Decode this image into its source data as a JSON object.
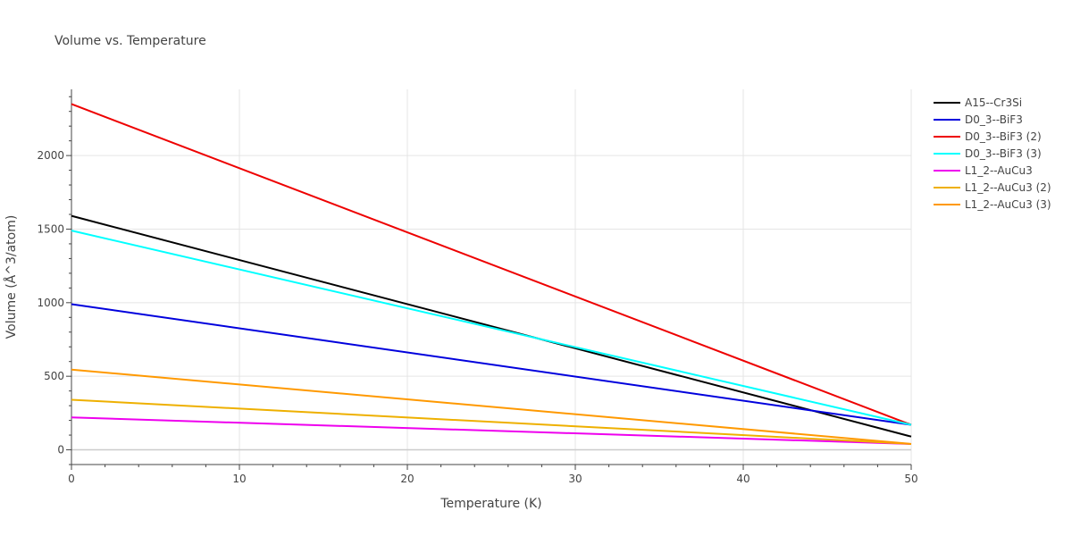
{
  "chart_data": {
    "type": "line",
    "title": "Volume vs. Temperature",
    "xlabel": "Temperature (K)",
    "ylabel": "Volume (Å^3/atom)",
    "xlim": [
      0,
      50
    ],
    "ylim": [
      -100,
      2450
    ],
    "x_ticks": [
      0,
      10,
      20,
      30,
      40,
      50
    ],
    "y_ticks": [
      0,
      500,
      1000,
      1500,
      2000
    ],
    "grid": true,
    "legend_position": "right",
    "series": [
      {
        "name": "A15--Cr3Si",
        "color": "#000000",
        "x": [
          0,
          50
        ],
        "y": [
          1590,
          90
        ]
      },
      {
        "name": "D0_3--BiF3",
        "color": "#0000dd",
        "x": [
          0,
          50
        ],
        "y": [
          990,
          170
        ]
      },
      {
        "name": "D0_3--BiF3 (2)",
        "color": "#ee0000",
        "x": [
          0,
          50
        ],
        "y": [
          2350,
          170
        ]
      },
      {
        "name": "D0_3--BiF3 (3)",
        "color": "#00ffff",
        "x": [
          0,
          50
        ],
        "y": [
          1490,
          170
        ]
      },
      {
        "name": "L1_2--AuCu3",
        "color": "#ee00ee",
        "x": [
          0,
          50
        ],
        "y": [
          220,
          40
        ]
      },
      {
        "name": "L1_2--AuCu3 (2)",
        "color": "#eeb000",
        "x": [
          0,
          50
        ],
        "y": [
          340,
          40
        ]
      },
      {
        "name": "L1_2--AuCu3 (3)",
        "color": "#ff9900",
        "x": [
          0,
          50
        ],
        "y": [
          545,
          40
        ]
      }
    ]
  }
}
